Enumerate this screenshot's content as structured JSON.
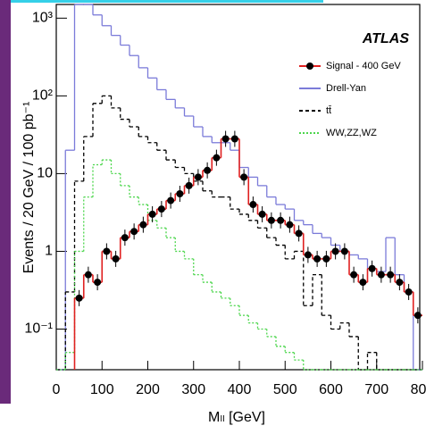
{
  "chart_data": {
    "type": "histogram",
    "x_label": "Mₗₗ [GeV]",
    "y_label": "Events / 20 GeV / 100 pb⁻¹",
    "annotation": "ATLAS",
    "legend": "upper right",
    "log_y": true,
    "bins": [
      0,
      20,
      40,
      60,
      80,
      100,
      120,
      140,
      160,
      180,
      200,
      220,
      240,
      260,
      280,
      300,
      320,
      340,
      360,
      380,
      400,
      420,
      440,
      460,
      480,
      500,
      520,
      540,
      560,
      580,
      600,
      620,
      640,
      660,
      680,
      700,
      720,
      740,
      760,
      780,
      800
    ],
    "series": [
      {
        "name": "Signal - 400 GeV",
        "color": "#e02020",
        "style": "solid",
        "markers": true,
        "values": [
          null,
          null,
          0.25,
          0.5,
          0.4,
          1,
          0.8,
          1.5,
          1.8,
          2.2,
          3,
          3.5,
          4.5,
          5.5,
          7,
          9,
          11,
          16,
          28,
          28,
          9,
          4,
          3,
          2.5,
          2.5,
          2.2,
          1.7,
          0.9,
          0.8,
          0.8,
          1,
          1,
          0.5,
          0.4,
          0.6,
          0.5,
          0.5,
          0.4,
          0.3,
          0.15
        ]
      },
      {
        "name": "Drell-Yan",
        "color": "#7b7bd9",
        "style": "solid",
        "markers": false,
        "values": [
          0.03,
          20,
          1500,
          1500,
          1100,
          800,
          600,
          450,
          330,
          230,
          170,
          120,
          90,
          70,
          55,
          40,
          30,
          25,
          25,
          20,
          12,
          9,
          7,
          5,
          4,
          3.5,
          2.5,
          2.2,
          1.7,
          1.5,
          1.2,
          1,
          0.9,
          0.8,
          0.6,
          0.55,
          1.5,
          0.5,
          0.3,
          0.03
        ]
      },
      {
        "name": "tt̄",
        "color": "#000000",
        "style": "dashed",
        "markers": false,
        "values": [
          0.03,
          0.3,
          8,
          30,
          80,
          100,
          70,
          50,
          40,
          30,
          25,
          20,
          15,
          12,
          10,
          8,
          6,
          5,
          5,
          3.5,
          3,
          2.5,
          2,
          1.5,
          1.2,
          0.8,
          1,
          0.2,
          0.5,
          0.15,
          0.1,
          0.12,
          0.08,
          0.03,
          0.05,
          0.03,
          0.03,
          0.03,
          0.03,
          0.03
        ]
      },
      {
        "name": "WW,ZZ,WZ",
        "color": "#4cd64c",
        "style": "dotted",
        "markers": false,
        "values": [
          0.03,
          0.05,
          1,
          5,
          13,
          15,
          10,
          7,
          5,
          4,
          2.5,
          2,
          1.5,
          1,
          0.8,
          0.5,
          0.4,
          0.3,
          0.25,
          0.2,
          0.15,
          0.12,
          0.1,
          0.08,
          0.06,
          0.05,
          0.04,
          0.03,
          0.03,
          0.03,
          0.03,
          0.03,
          0.03,
          0.03,
          0.03,
          0.03,
          0.03,
          0.03,
          0.03,
          0.03
        ]
      }
    ],
    "xlim": [
      0,
      800
    ],
    "xticks": [
      0,
      100,
      200,
      300,
      400,
      500,
      600,
      700,
      800
    ],
    "ylim": [
      0.03,
      1500
    ],
    "yticks": [
      {
        "value": 0.1,
        "label": "10⁻¹"
      },
      1,
      10,
      {
        "value": 100,
        "label": "10²"
      },
      {
        "value": 1000,
        "label": "10³"
      }
    ]
  }
}
